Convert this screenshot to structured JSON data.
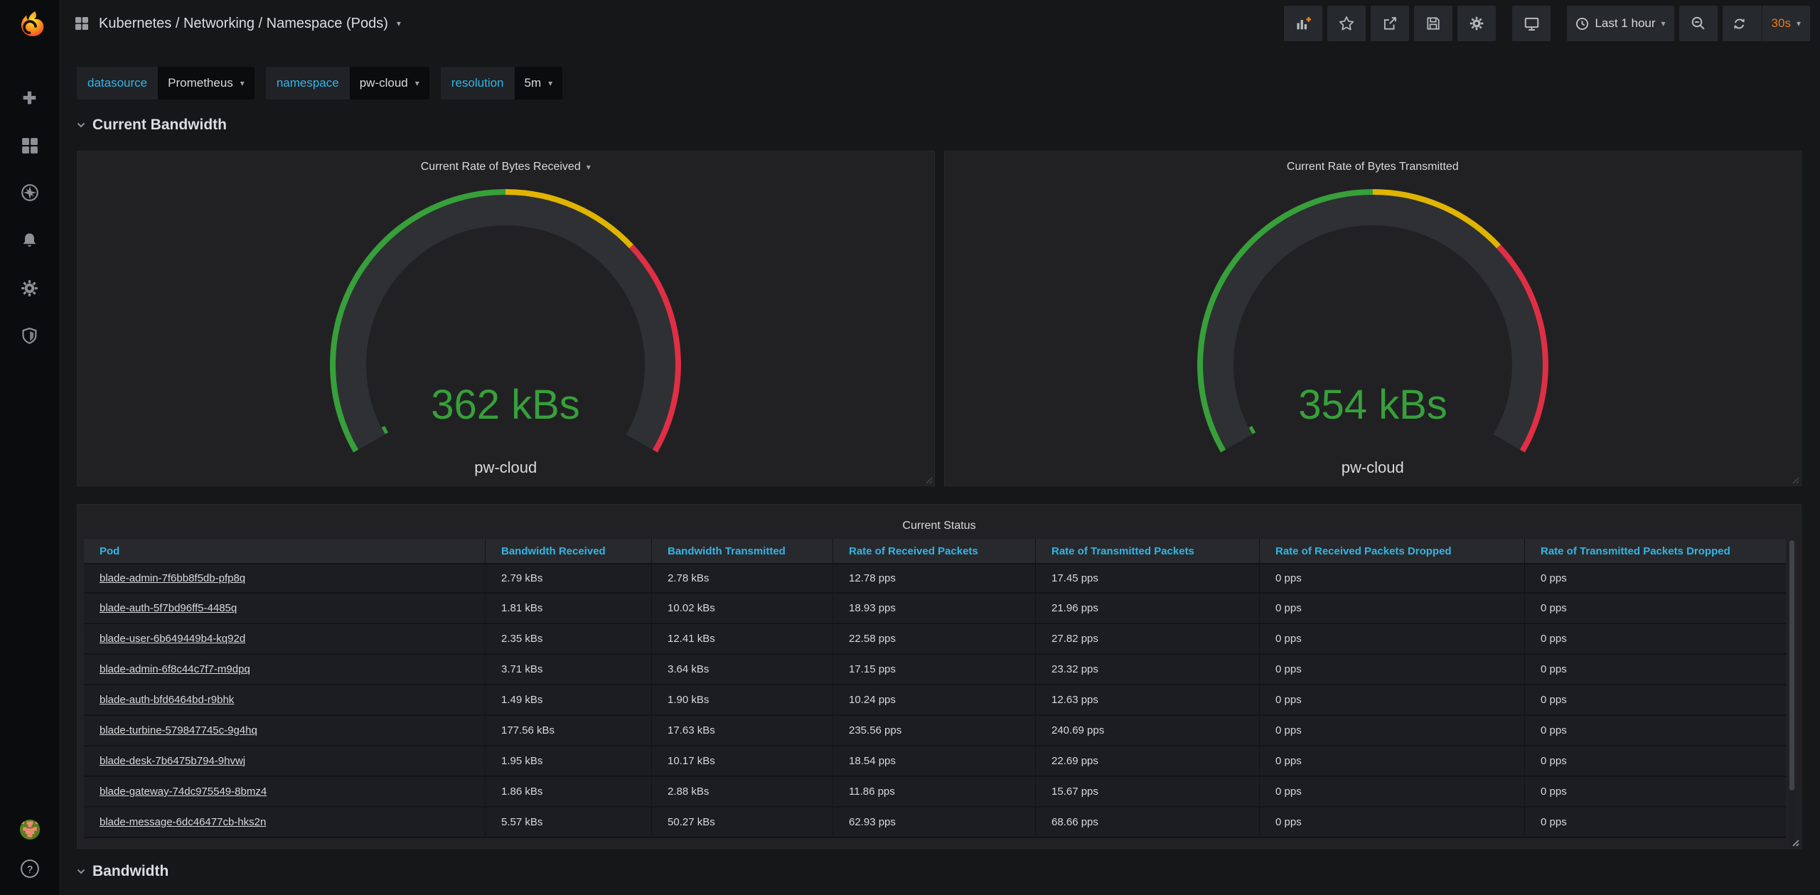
{
  "navbar": {
    "title": "Kubernetes / Networking / Namespace (Pods)",
    "time_range": "Last 1 hour",
    "refresh_interval": "30s"
  },
  "variables": [
    {
      "label": "datasource",
      "value": "Prometheus"
    },
    {
      "label": "namespace",
      "value": "pw-cloud"
    },
    {
      "label": "resolution",
      "value": "5m"
    }
  ],
  "sections": {
    "current_bandwidth": "Current Bandwidth",
    "bandwidth": "Bandwidth"
  },
  "sidebar": {
    "help_glyph": "?"
  },
  "colors": {
    "green": "#37a03a",
    "yellow": "#e0b400",
    "red": "#e02f44",
    "blue": "#33b5e5",
    "orange": "#eb7b18",
    "gauge_track": "#2e3034"
  },
  "chart_data": [
    {
      "type": "gauge",
      "title": "Current Rate of Bytes Received",
      "metric_label": "pw-cloud",
      "display_value": "362 kBs",
      "value": 362,
      "unit": "kBs",
      "arc_sweep_deg": 240,
      "value_fraction": 0.013,
      "thresholds": [
        {
          "color_key": "green",
          "to": 0.5
        },
        {
          "color_key": "yellow",
          "to": 0.695
        },
        {
          "color_key": "red",
          "to": 1
        }
      ]
    },
    {
      "type": "gauge",
      "title": "Current Rate of Bytes Transmitted",
      "metric_label": "pw-cloud",
      "display_value": "354 kBs",
      "value": 354,
      "unit": "kBs",
      "arc_sweep_deg": 240,
      "value_fraction": 0.013,
      "thresholds": [
        {
          "color_key": "green",
          "to": 0.5
        },
        {
          "color_key": "yellow",
          "to": 0.695
        },
        {
          "color_key": "red",
          "to": 1
        }
      ]
    },
    {
      "type": "table",
      "title": "Current Status",
      "columns": [
        "Pod",
        "Bandwidth Received",
        "Bandwidth Transmitted",
        "Rate of Received Packets",
        "Rate of Transmitted Packets",
        "Rate of Received Packets Dropped",
        "Rate of Transmitted Packets Dropped"
      ],
      "rows": [
        [
          "blade-admin-7f6bb8f5db-pfp8q",
          "2.79 kBs",
          "2.78 kBs",
          "12.78 pps",
          "17.45 pps",
          "0 pps",
          "0 pps"
        ],
        [
          "blade-auth-5f7bd96ff5-4485q",
          "1.81 kBs",
          "10.02 kBs",
          "18.93 pps",
          "21.96 pps",
          "0 pps",
          "0 pps"
        ],
        [
          "blade-user-6b649449b4-kq92d",
          "2.35 kBs",
          "12.41 kBs",
          "22.58 pps",
          "27.82 pps",
          "0 pps",
          "0 pps"
        ],
        [
          "blade-admin-6f8c44c7f7-m9dpq",
          "3.71 kBs",
          "3.64 kBs",
          "17.15 pps",
          "23.32 pps",
          "0 pps",
          "0 pps"
        ],
        [
          "blade-auth-bfd6464bd-r9bhk",
          "1.49 kBs",
          "1.90 kBs",
          "10.24 pps",
          "12.63 pps",
          "0 pps",
          "0 pps"
        ],
        [
          "blade-turbine-579847745c-9g4hq",
          "177.56 kBs",
          "17.63 kBs",
          "235.56 pps",
          "240.69 pps",
          "0 pps",
          "0 pps"
        ],
        [
          "blade-desk-7b6475b794-9hvwj",
          "1.95 kBs",
          "10.17 kBs",
          "18.54 pps",
          "22.69 pps",
          "0 pps",
          "0 pps"
        ],
        [
          "blade-gateway-74dc975549-8bmz4",
          "1.86 kBs",
          "2.88 kBs",
          "11.86 pps",
          "15.67 pps",
          "0 pps",
          "0 pps"
        ],
        [
          "blade-message-6dc46477cb-hks2n",
          "5.57 kBs",
          "50.27 kBs",
          "62.93 pps",
          "68.66 pps",
          "0 pps",
          "0 pps"
        ]
      ]
    }
  ]
}
